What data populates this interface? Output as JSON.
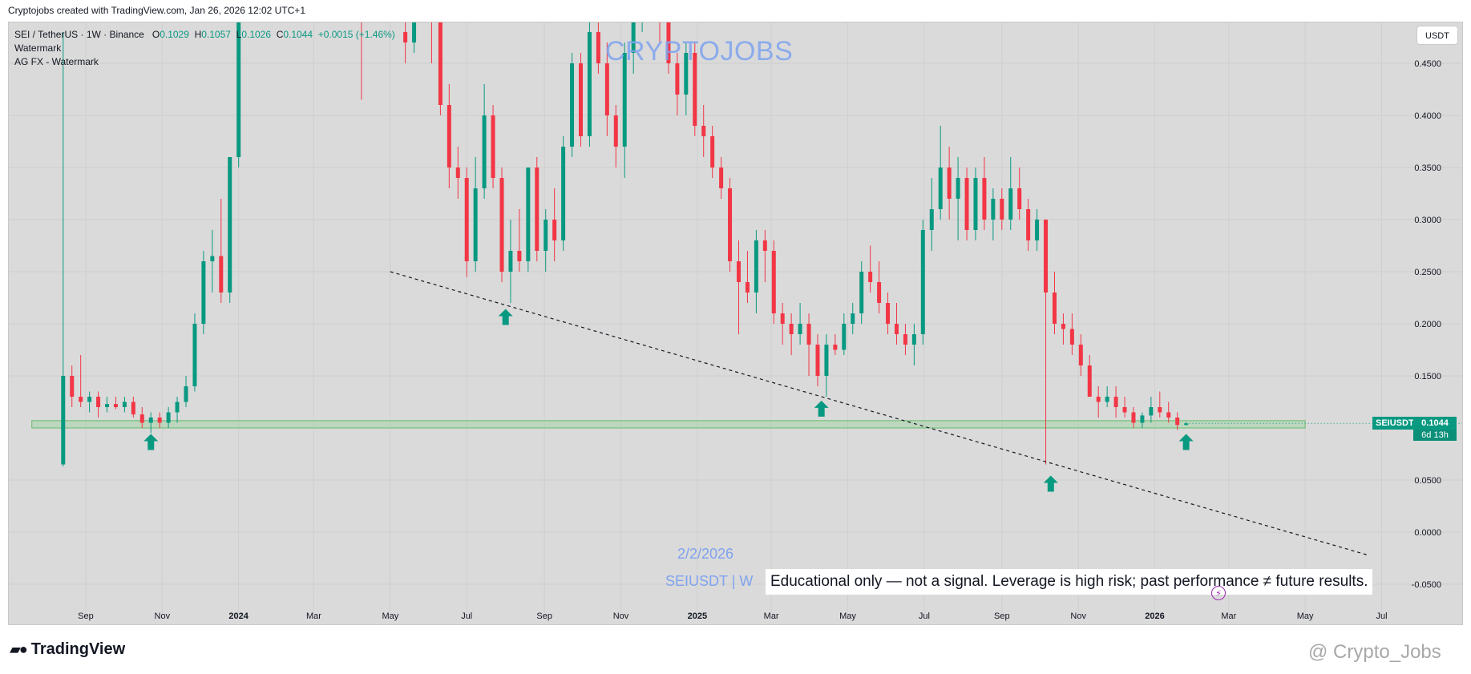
{
  "header": {
    "created_by": "Cryptojobs created with TradingView.com, Jan 26, 2026 12:02 UTC+1"
  },
  "legend": {
    "symbol": "SEI / TetherUS · 1W · Binance",
    "open_key": "O",
    "open": "0.1029",
    "high_key": "H",
    "high": "0.1057",
    "low_key": "L",
    "low": "0.1026",
    "close_key": "C",
    "close": "0.1044",
    "change": "+0.0015 (+1.46%)",
    "indicator_1": "Watermark",
    "indicator_2": "AG FX - Watermark"
  },
  "currency_button": "USDT",
  "watermark_text": "CRYPTOJOBS",
  "overlay": {
    "date": "2/2/2026",
    "symbol_interval": "SEIUSDT | W",
    "disclaimer": "Educational only — not a signal. Leverage is high risk; past performance ≠ future results."
  },
  "last_price": {
    "ticker": "SEIUSDT",
    "price": "0.1044",
    "countdown": "6d 13h"
  },
  "footer": {
    "brand": "TradingView",
    "handle": "@ Crypto_Jobs"
  },
  "colors": {
    "up": "#089981",
    "down": "#f23645",
    "support_zone": "#a5d6a7",
    "background": "#dadada"
  },
  "chart_data": {
    "type": "candlestick",
    "symbol": "SEIUSDT",
    "interval": "1W",
    "ylim": [
      -0.07,
      0.49
    ],
    "y_ticks": [
      "0.4500",
      "0.4000",
      "0.3500",
      "0.3000",
      "0.2500",
      "0.2000",
      "0.1500",
      "0.0500",
      "0.0000",
      "-0.0500"
    ],
    "x_ticks": [
      {
        "label": "Sep",
        "date": "2023-09-01"
      },
      {
        "label": "Nov",
        "date": "2023-11-01"
      },
      {
        "label": "2024",
        "date": "2024-01-01"
      },
      {
        "label": "Mar",
        "date": "2024-03-01"
      },
      {
        "label": "May",
        "date": "2024-05-01"
      },
      {
        "label": "Jul",
        "date": "2024-07-01"
      },
      {
        "label": "Sep",
        "date": "2024-09-01"
      },
      {
        "label": "Nov",
        "date": "2024-11-01"
      },
      {
        "label": "2025",
        "date": "2025-01-01"
      },
      {
        "label": "Mar",
        "date": "2025-03-01"
      },
      {
        "label": "May",
        "date": "2025-05-01"
      },
      {
        "label": "Jul",
        "date": "2025-07-01"
      },
      {
        "label": "Sep",
        "date": "2025-09-01"
      },
      {
        "label": "Nov",
        "date": "2025-11-01"
      },
      {
        "label": "2026",
        "date": "2026-01-01"
      },
      {
        "label": "Mar",
        "date": "2026-03-01"
      },
      {
        "label": "May",
        "date": "2026-05-01"
      },
      {
        "label": "Jul",
        "date": "2026-07-01"
      }
    ],
    "candles": [
      {
        "date": "2023-08-14",
        "o": 0.065,
        "h": 0.48,
        "l": 0.063,
        "c": 0.15
      },
      {
        "date": "2023-08-21",
        "o": 0.15,
        "h": 0.16,
        "l": 0.12,
        "c": 0.13
      },
      {
        "date": "2023-08-28",
        "o": 0.13,
        "h": 0.17,
        "l": 0.12,
        "c": 0.125
      },
      {
        "date": "2023-09-04",
        "o": 0.125,
        "h": 0.135,
        "l": 0.115,
        "c": 0.13
      },
      {
        "date": "2023-09-11",
        "o": 0.13,
        "h": 0.135,
        "l": 0.11,
        "c": 0.12
      },
      {
        "date": "2023-09-18",
        "o": 0.12,
        "h": 0.13,
        "l": 0.115,
        "c": 0.123
      },
      {
        "date": "2023-09-25",
        "o": 0.123,
        "h": 0.13,
        "l": 0.118,
        "c": 0.12
      },
      {
        "date": "2023-10-02",
        "o": 0.12,
        "h": 0.13,
        "l": 0.115,
        "c": 0.125
      },
      {
        "date": "2023-10-09",
        "o": 0.125,
        "h": 0.13,
        "l": 0.11,
        "c": 0.113
      },
      {
        "date": "2023-10-16",
        "o": 0.113,
        "h": 0.12,
        "l": 0.1,
        "c": 0.105
      },
      {
        "date": "2023-10-23",
        "o": 0.105,
        "h": 0.115,
        "l": 0.095,
        "c": 0.11
      },
      {
        "date": "2023-10-30",
        "o": 0.11,
        "h": 0.115,
        "l": 0.1,
        "c": 0.105
      },
      {
        "date": "2023-11-06",
        "o": 0.105,
        "h": 0.12,
        "l": 0.1,
        "c": 0.115
      },
      {
        "date": "2023-11-13",
        "o": 0.115,
        "h": 0.13,
        "l": 0.105,
        "c": 0.125
      },
      {
        "date": "2023-11-20",
        "o": 0.125,
        "h": 0.15,
        "l": 0.12,
        "c": 0.14
      },
      {
        "date": "2023-11-27",
        "o": 0.14,
        "h": 0.21,
        "l": 0.135,
        "c": 0.2
      },
      {
        "date": "2023-12-04",
        "o": 0.2,
        "h": 0.27,
        "l": 0.19,
        "c": 0.26
      },
      {
        "date": "2023-12-11",
        "o": 0.26,
        "h": 0.29,
        "l": 0.23,
        "c": 0.265
      },
      {
        "date": "2023-12-18",
        "o": 0.265,
        "h": 0.32,
        "l": 0.22,
        "c": 0.23
      },
      {
        "date": "2023-12-25",
        "o": 0.23,
        "h": 0.36,
        "l": 0.22,
        "c": 0.36
      },
      {
        "date": "2024-01-01",
        "o": 0.36,
        "h": 0.58,
        "l": 0.35,
        "c": 0.56
      },
      {
        "date": "2024-04-08",
        "o": 0.56,
        "h": 0.6,
        "l": 0.415,
        "c": 0.5
      },
      {
        "date": "2024-05-13",
        "o": 0.48,
        "h": 0.52,
        "l": 0.45,
        "c": 0.47
      },
      {
        "date": "2024-05-20",
        "o": 0.47,
        "h": 0.56,
        "l": 0.46,
        "c": 0.52
      },
      {
        "date": "2024-06-03",
        "o": 0.5,
        "h": 0.53,
        "l": 0.45,
        "c": 0.49
      },
      {
        "date": "2024-06-10",
        "o": 0.49,
        "h": 0.5,
        "l": 0.4,
        "c": 0.41
      },
      {
        "date": "2024-06-17",
        "o": 0.41,
        "h": 0.43,
        "l": 0.33,
        "c": 0.35
      },
      {
        "date": "2024-06-24",
        "o": 0.35,
        "h": 0.37,
        "l": 0.32,
        "c": 0.34
      },
      {
        "date": "2024-07-01",
        "o": 0.34,
        "h": 0.35,
        "l": 0.245,
        "c": 0.26
      },
      {
        "date": "2024-07-08",
        "o": 0.26,
        "h": 0.36,
        "l": 0.25,
        "c": 0.33
      },
      {
        "date": "2024-07-15",
        "o": 0.33,
        "h": 0.43,
        "l": 0.32,
        "c": 0.4
      },
      {
        "date": "2024-07-22",
        "o": 0.4,
        "h": 0.41,
        "l": 0.33,
        "c": 0.34
      },
      {
        "date": "2024-07-29",
        "o": 0.34,
        "h": 0.35,
        "l": 0.24,
        "c": 0.25
      },
      {
        "date": "2024-08-05",
        "o": 0.25,
        "h": 0.3,
        "l": 0.22,
        "c": 0.27
      },
      {
        "date": "2024-08-12",
        "o": 0.27,
        "h": 0.31,
        "l": 0.25,
        "c": 0.26
      },
      {
        "date": "2024-08-19",
        "o": 0.26,
        "h": 0.35,
        "l": 0.25,
        "c": 0.35
      },
      {
        "date": "2024-08-26",
        "o": 0.35,
        "h": 0.36,
        "l": 0.26,
        "c": 0.27
      },
      {
        "date": "2024-09-02",
        "o": 0.27,
        "h": 0.31,
        "l": 0.25,
        "c": 0.3
      },
      {
        "date": "2024-09-09",
        "o": 0.3,
        "h": 0.33,
        "l": 0.26,
        "c": 0.28
      },
      {
        "date": "2024-09-16",
        "o": 0.28,
        "h": 0.38,
        "l": 0.27,
        "c": 0.37
      },
      {
        "date": "2024-09-23",
        "o": 0.37,
        "h": 0.46,
        "l": 0.36,
        "c": 0.45
      },
      {
        "date": "2024-09-30",
        "o": 0.45,
        "h": 0.46,
        "l": 0.37,
        "c": 0.38
      },
      {
        "date": "2024-10-07",
        "o": 0.38,
        "h": 0.5,
        "l": 0.37,
        "c": 0.48
      },
      {
        "date": "2024-10-14",
        "o": 0.48,
        "h": 0.52,
        "l": 0.44,
        "c": 0.45
      },
      {
        "date": "2024-10-21",
        "o": 0.45,
        "h": 0.47,
        "l": 0.38,
        "c": 0.4
      },
      {
        "date": "2024-10-28",
        "o": 0.4,
        "h": 0.41,
        "l": 0.35,
        "c": 0.37
      },
      {
        "date": "2024-11-04",
        "o": 0.37,
        "h": 0.47,
        "l": 0.34,
        "c": 0.46
      },
      {
        "date": "2024-11-11",
        "o": 0.46,
        "h": 0.55,
        "l": 0.44,
        "c": 0.5
      },
      {
        "date": "2024-11-18",
        "o": 0.5,
        "h": 0.58,
        "l": 0.48,
        "c": 0.55
      },
      {
        "date": "2024-11-25",
        "o": 0.55,
        "h": 0.6,
        "l": 0.5,
        "c": 0.54
      },
      {
        "date": "2024-12-02",
        "o": 0.54,
        "h": 0.6,
        "l": 0.47,
        "c": 0.5
      },
      {
        "date": "2024-12-09",
        "o": 0.5,
        "h": 0.52,
        "l": 0.44,
        "c": 0.45
      },
      {
        "date": "2024-12-16",
        "o": 0.45,
        "h": 0.46,
        "l": 0.4,
        "c": 0.42
      },
      {
        "date": "2024-12-23",
        "o": 0.42,
        "h": 0.47,
        "l": 0.4,
        "c": 0.46
      },
      {
        "date": "2024-12-30",
        "o": 0.46,
        "h": 0.47,
        "l": 0.38,
        "c": 0.39
      },
      {
        "date": "2025-01-06",
        "o": 0.39,
        "h": 0.41,
        "l": 0.36,
        "c": 0.38
      },
      {
        "date": "2025-01-13",
        "o": 0.38,
        "h": 0.39,
        "l": 0.34,
        "c": 0.35
      },
      {
        "date": "2025-01-20",
        "o": 0.35,
        "h": 0.36,
        "l": 0.32,
        "c": 0.33
      },
      {
        "date": "2025-01-27",
        "o": 0.33,
        "h": 0.34,
        "l": 0.25,
        "c": 0.26
      },
      {
        "date": "2025-02-03",
        "o": 0.26,
        "h": 0.28,
        "l": 0.19,
        "c": 0.24
      },
      {
        "date": "2025-02-10",
        "o": 0.24,
        "h": 0.27,
        "l": 0.22,
        "c": 0.23
      },
      {
        "date": "2025-02-17",
        "o": 0.23,
        "h": 0.29,
        "l": 0.21,
        "c": 0.28
      },
      {
        "date": "2025-02-24",
        "o": 0.28,
        "h": 0.29,
        "l": 0.24,
        "c": 0.27
      },
      {
        "date": "2025-03-03",
        "o": 0.27,
        "h": 0.28,
        "l": 0.2,
        "c": 0.21
      },
      {
        "date": "2025-03-10",
        "o": 0.21,
        "h": 0.22,
        "l": 0.18,
        "c": 0.2
      },
      {
        "date": "2025-03-17",
        "o": 0.2,
        "h": 0.21,
        "l": 0.17,
        "c": 0.19
      },
      {
        "date": "2025-03-24",
        "o": 0.19,
        "h": 0.22,
        "l": 0.18,
        "c": 0.2
      },
      {
        "date": "2025-03-31",
        "o": 0.2,
        "h": 0.21,
        "l": 0.15,
        "c": 0.18
      },
      {
        "date": "2025-04-07",
        "o": 0.18,
        "h": 0.19,
        "l": 0.14,
        "c": 0.15
      },
      {
        "date": "2025-04-14",
        "o": 0.15,
        "h": 0.19,
        "l": 0.13,
        "c": 0.18
      },
      {
        "date": "2025-04-21",
        "o": 0.18,
        "h": 0.19,
        "l": 0.17,
        "c": 0.175
      },
      {
        "date": "2025-04-28",
        "o": 0.175,
        "h": 0.21,
        "l": 0.17,
        "c": 0.2
      },
      {
        "date": "2025-05-05",
        "o": 0.2,
        "h": 0.22,
        "l": 0.19,
        "c": 0.21
      },
      {
        "date": "2025-05-12",
        "o": 0.21,
        "h": 0.26,
        "l": 0.2,
        "c": 0.25
      },
      {
        "date": "2025-05-19",
        "o": 0.25,
        "h": 0.275,
        "l": 0.23,
        "c": 0.24
      },
      {
        "date": "2025-05-26",
        "o": 0.24,
        "h": 0.26,
        "l": 0.21,
        "c": 0.22
      },
      {
        "date": "2025-06-02",
        "o": 0.22,
        "h": 0.23,
        "l": 0.19,
        "c": 0.2
      },
      {
        "date": "2025-06-09",
        "o": 0.2,
        "h": 0.22,
        "l": 0.18,
        "c": 0.19
      },
      {
        "date": "2025-06-16",
        "o": 0.19,
        "h": 0.2,
        "l": 0.17,
        "c": 0.18
      },
      {
        "date": "2025-06-23",
        "o": 0.18,
        "h": 0.2,
        "l": 0.16,
        "c": 0.19
      },
      {
        "date": "2025-06-30",
        "o": 0.19,
        "h": 0.3,
        "l": 0.18,
        "c": 0.29
      },
      {
        "date": "2025-07-07",
        "o": 0.29,
        "h": 0.34,
        "l": 0.27,
        "c": 0.31
      },
      {
        "date": "2025-07-14",
        "o": 0.31,
        "h": 0.39,
        "l": 0.3,
        "c": 0.35
      },
      {
        "date": "2025-07-21",
        "o": 0.35,
        "h": 0.37,
        "l": 0.3,
        "c": 0.32
      },
      {
        "date": "2025-07-28",
        "o": 0.32,
        "h": 0.36,
        "l": 0.28,
        "c": 0.34
      },
      {
        "date": "2025-08-04",
        "o": 0.34,
        "h": 0.35,
        "l": 0.28,
        "c": 0.29
      },
      {
        "date": "2025-08-11",
        "o": 0.29,
        "h": 0.35,
        "l": 0.28,
        "c": 0.34
      },
      {
        "date": "2025-08-18",
        "o": 0.34,
        "h": 0.36,
        "l": 0.29,
        "c": 0.3
      },
      {
        "date": "2025-08-25",
        "o": 0.3,
        "h": 0.33,
        "l": 0.28,
        "c": 0.32
      },
      {
        "date": "2025-09-01",
        "o": 0.32,
        "h": 0.33,
        "l": 0.29,
        "c": 0.3
      },
      {
        "date": "2025-09-08",
        "o": 0.3,
        "h": 0.36,
        "l": 0.29,
        "c": 0.33
      },
      {
        "date": "2025-09-15",
        "o": 0.33,
        "h": 0.35,
        "l": 0.3,
        "c": 0.31
      },
      {
        "date": "2025-09-22",
        "o": 0.31,
        "h": 0.32,
        "l": 0.27,
        "c": 0.28
      },
      {
        "date": "2025-09-29",
        "o": 0.28,
        "h": 0.31,
        "l": 0.27,
        "c": 0.3
      },
      {
        "date": "2025-10-06",
        "o": 0.3,
        "h": 0.3,
        "l": 0.065,
        "c": 0.23
      },
      {
        "date": "2025-10-13",
        "o": 0.23,
        "h": 0.25,
        "l": 0.19,
        "c": 0.2
      },
      {
        "date": "2025-10-20",
        "o": 0.2,
        "h": 0.21,
        "l": 0.18,
        "c": 0.195
      },
      {
        "date": "2025-10-27",
        "o": 0.195,
        "h": 0.21,
        "l": 0.17,
        "c": 0.18
      },
      {
        "date": "2025-11-03",
        "o": 0.18,
        "h": 0.19,
        "l": 0.15,
        "c": 0.16
      },
      {
        "date": "2025-11-10",
        "o": 0.16,
        "h": 0.17,
        "l": 0.13,
        "c": 0.13
      },
      {
        "date": "2025-11-17",
        "o": 0.13,
        "h": 0.14,
        "l": 0.11,
        "c": 0.125
      },
      {
        "date": "2025-11-24",
        "o": 0.125,
        "h": 0.14,
        "l": 0.12,
        "c": 0.13
      },
      {
        "date": "2025-12-01",
        "o": 0.13,
        "h": 0.14,
        "l": 0.11,
        "c": 0.12
      },
      {
        "date": "2025-12-08",
        "o": 0.12,
        "h": 0.13,
        "l": 0.11,
        "c": 0.115
      },
      {
        "date": "2025-12-15",
        "o": 0.115,
        "h": 0.12,
        "l": 0.1,
        "c": 0.105
      },
      {
        "date": "2025-12-22",
        "o": 0.105,
        "h": 0.115,
        "l": 0.1,
        "c": 0.112
      },
      {
        "date": "2025-12-29",
        "o": 0.112,
        "h": 0.13,
        "l": 0.105,
        "c": 0.12
      },
      {
        "date": "2026-01-05",
        "o": 0.12,
        "h": 0.135,
        "l": 0.11,
        "c": 0.115
      },
      {
        "date": "2026-01-12",
        "o": 0.115,
        "h": 0.125,
        "l": 0.105,
        "c": 0.11
      },
      {
        "date": "2026-01-19",
        "o": 0.11,
        "h": 0.115,
        "l": 0.098,
        "c": 0.1029
      },
      {
        "date": "2026-01-26",
        "o": 0.1029,
        "h": 0.1057,
        "l": 0.1026,
        "c": 0.1044
      }
    ],
    "support_zone": {
      "date_from": "2023-07-20",
      "date_to": "2026-05-01",
      "y_low": 0.1,
      "y_high": 0.107
    },
    "trendline": {
      "from": {
        "date": "2024-05-01",
        "y": 0.25
      },
      "to": {
        "date": "2026-06-20",
        "y": -0.022
      }
    },
    "arrows": [
      {
        "date": "2023-10-23",
        "y": 0.085
      },
      {
        "date": "2024-08-01",
        "y": 0.205
      },
      {
        "date": "2025-04-10",
        "y": 0.117
      },
      {
        "date": "2025-10-10",
        "y": 0.045
      },
      {
        "date": "2026-01-26",
        "y": 0.085
      }
    ]
  }
}
